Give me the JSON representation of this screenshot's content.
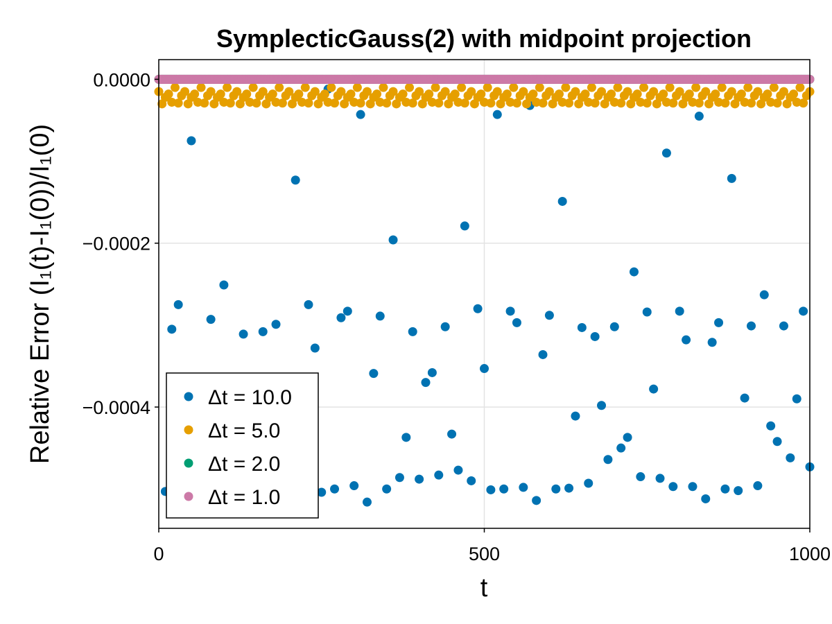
{
  "chart_data": {
    "type": "scatter",
    "title": "SymplecticGauss(2) with midpoint projection",
    "xlabel": "t",
    "ylabel": "Relative Error (I₁(t)-I₁(0))/I₁(0)",
    "xlim": [
      0,
      1000
    ],
    "ylim": [
      -0.000548,
      2.4e-05
    ],
    "x_ticks": [
      {
        "value": 0,
        "label": "0"
      },
      {
        "value": 500,
        "label": "500"
      },
      {
        "value": 1000,
        "label": "1000"
      }
    ],
    "y_ticks": [
      {
        "value": 0,
        "label": "0.0000"
      },
      {
        "value": -0.0002,
        "label": "−0.0002"
      },
      {
        "value": -0.0004,
        "label": "−0.0004"
      }
    ],
    "grid": true,
    "legend_position": "bottom-left",
    "series": [
      {
        "name": "Δt = 10.0",
        "color": "#0072b2",
        "points": [
          [
            10,
            -0.000503
          ],
          [
            20,
            -0.000305
          ],
          [
            30,
            -0.000275
          ],
          [
            50,
            -7.5e-05
          ],
          [
            60,
            -0.00052
          ],
          [
            80,
            -0.000293
          ],
          [
            100,
            -0.000251
          ],
          [
            130,
            -0.000311
          ],
          [
            160,
            -0.000308
          ],
          [
            180,
            -0.000299
          ],
          [
            210,
            -0.000123
          ],
          [
            230,
            -0.000275
          ],
          [
            240,
            -0.000328
          ],
          [
            250,
            -0.000504
          ],
          [
            260,
            -1.2e-05
          ],
          [
            270,
            -0.0005
          ],
          [
            280,
            -0.000291
          ],
          [
            290,
            -0.000283
          ],
          [
            300,
            -0.000496
          ],
          [
            310,
            -4.3e-05
          ],
          [
            320,
            -0.000516
          ],
          [
            330,
            -0.000359
          ],
          [
            340,
            -0.000289
          ],
          [
            350,
            -0.0005
          ],
          [
            360,
            -0.000196
          ],
          [
            370,
            -0.000486
          ],
          [
            380,
            -0.000437
          ],
          [
            390,
            -0.000308
          ],
          [
            400,
            -0.000488
          ],
          [
            410,
            -0.00037
          ],
          [
            420,
            -0.000358
          ],
          [
            430,
            -0.000483
          ],
          [
            440,
            -0.000302
          ],
          [
            450,
            -0.000433
          ],
          [
            460,
            -0.000477
          ],
          [
            470,
            -0.000179
          ],
          [
            480,
            -0.00049
          ],
          [
            490,
            -0.00028
          ],
          [
            500,
            -0.000353
          ],
          [
            510,
            -0.000501
          ],
          [
            520,
            -4.3e-05
          ],
          [
            530,
            -0.0005
          ],
          [
            540,
            -0.000283
          ],
          [
            550,
            -0.000297
          ],
          [
            560,
            -0.000498
          ],
          [
            570,
            -3.2e-05
          ],
          [
            580,
            -0.000514
          ],
          [
            590,
            -0.000336
          ],
          [
            600,
            -0.000288
          ],
          [
            610,
            -0.0005
          ],
          [
            620,
            -0.000149
          ],
          [
            630,
            -0.000499
          ],
          [
            640,
            -0.000411
          ],
          [
            650,
            -0.000303
          ],
          [
            660,
            -0.000493
          ],
          [
            670,
            -0.000314
          ],
          [
            680,
            -0.000398
          ],
          [
            690,
            -0.000464
          ],
          [
            700,
            -0.000302
          ],
          [
            710,
            -0.00045
          ],
          [
            720,
            -0.000437
          ],
          [
            730,
            -0.000235
          ],
          [
            740,
            -0.000485
          ],
          [
            750,
            -0.000284
          ],
          [
            760,
            -0.000378
          ],
          [
            770,
            -0.000487
          ],
          [
            780,
            -9e-05
          ],
          [
            790,
            -0.000497
          ],
          [
            800,
            -0.000283
          ],
          [
            810,
            -0.000318
          ],
          [
            820,
            -0.000497
          ],
          [
            830,
            -4.5e-05
          ],
          [
            840,
            -0.000512
          ],
          [
            850,
            -0.000321
          ],
          [
            860,
            -0.000297
          ],
          [
            870,
            -0.0005
          ],
          [
            880,
            -0.000121
          ],
          [
            890,
            -0.000502
          ],
          [
            900,
            -0.000389
          ],
          [
            910,
            -0.000301
          ],
          [
            920,
            -0.000496
          ],
          [
            930,
            -0.000263
          ],
          [
            940,
            -0.000423
          ],
          [
            950,
            -0.000442
          ],
          [
            960,
            -0.000301
          ],
          [
            970,
            -0.000462
          ],
          [
            980,
            -0.00039
          ],
          [
            990,
            -0.000283
          ],
          [
            1000,
            -0.000473
          ]
        ]
      },
      {
        "name": "Δt = 5.0",
        "color": "#e69f00",
        "pattern": {
          "x_start": 0,
          "x_end": 1000,
          "x_step": 5,
          "y_values": [
            -1.5e-05,
            -3e-05,
            -2.2e-05,
            -1.8e-05,
            -2.8e-05,
            -1e-05,
            -2.9e-05,
            -2e-05
          ]
        }
      },
      {
        "name": "Δt = 2.0",
        "color": "#009e73",
        "pattern": {
          "x_start": 0,
          "x_end": 1000,
          "x_step": 2,
          "y_values": [
            0
          ]
        }
      },
      {
        "name": "Δt = 1.0",
        "color": "#cc79a7",
        "pattern": {
          "x_start": 0,
          "x_end": 1000,
          "x_step": 1,
          "y_values": [
            0
          ]
        }
      }
    ]
  }
}
